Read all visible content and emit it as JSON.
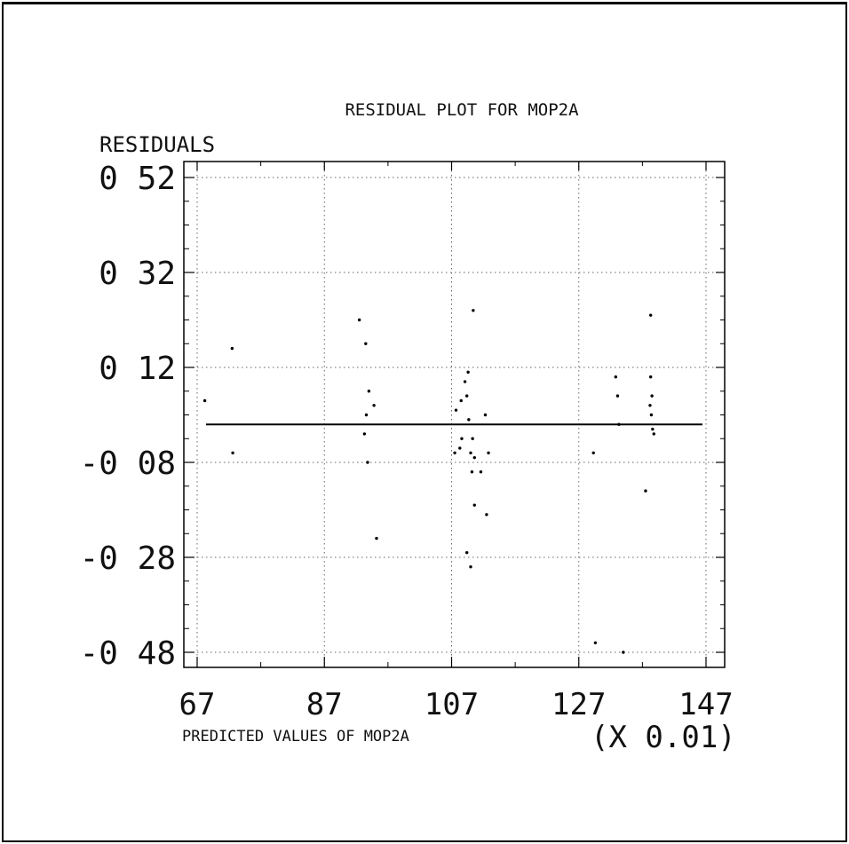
{
  "chart_data": {
    "type": "scatter",
    "title": "RESIDUAL PLOT FOR MOP2A",
    "ylabel": "RESIDUALS",
    "xlabel": "PREDICTED VALUES OF MOP2A",
    "x_scale_note": "(X 0.01)",
    "xlim": [
      67,
      147
    ],
    "ylim": [
      -0.48,
      0.52
    ],
    "x_ticks": [
      67,
      87,
      107,
      127,
      147
    ],
    "y_ticks": [
      0.52,
      0.32,
      0.12,
      -0.08,
      -0.28,
      -0.48
    ],
    "x_tick_labels": [
      "67",
      "87",
      "107",
      "127",
      "147"
    ],
    "y_tick_labels": [
      "0 52",
      "0 32",
      "0 12",
      "-0 08",
      "-0 28",
      "-0 48"
    ],
    "reference_line_y": 0.0,
    "grid": true,
    "points": [
      {
        "x": 68.2,
        "y": 0.05
      },
      {
        "x": 72.5,
        "y": 0.16
      },
      {
        "x": 72.6,
        "y": -0.06
      },
      {
        "x": 92.5,
        "y": 0.22
      },
      {
        "x": 93.5,
        "y": 0.17
      },
      {
        "x": 94.0,
        "y": 0.07
      },
      {
        "x": 94.8,
        "y": 0.04
      },
      {
        "x": 93.6,
        "y": 0.02
      },
      {
        "x": 93.3,
        "y": -0.02
      },
      {
        "x": 93.8,
        "y": -0.08
      },
      {
        "x": 95.2,
        "y": -0.24
      },
      {
        "x": 107.5,
        "y": -0.06
      },
      {
        "x": 107.7,
        "y": 0.03
      },
      {
        "x": 108.5,
        "y": 0.05
      },
      {
        "x": 108.3,
        "y": -0.05
      },
      {
        "x": 108.6,
        "y": -0.03
      },
      {
        "x": 109.1,
        "y": 0.09
      },
      {
        "x": 109.4,
        "y": 0.06
      },
      {
        "x": 109.6,
        "y": 0.11
      },
      {
        "x": 109.7,
        "y": 0.01
      },
      {
        "x": 110.0,
        "y": -0.06
      },
      {
        "x": 110.6,
        "y": -0.07
      },
      {
        "x": 110.3,
        "y": -0.03
      },
      {
        "x": 110.2,
        "y": -0.1
      },
      {
        "x": 110.4,
        "y": 0.24
      },
      {
        "x": 110.6,
        "y": -0.17
      },
      {
        "x": 109.4,
        "y": -0.27
      },
      {
        "x": 110.0,
        "y": -0.3
      },
      {
        "x": 111.6,
        "y": -0.1
      },
      {
        "x": 112.5,
        "y": -0.19
      },
      {
        "x": 112.3,
        "y": 0.02
      },
      {
        "x": 112.8,
        "y": -0.06
      },
      {
        "x": 129.3,
        "y": -0.06
      },
      {
        "x": 129.6,
        "y": -0.46
      },
      {
        "x": 132.8,
        "y": 0.1
      },
      {
        "x": 133.1,
        "y": 0.06
      },
      {
        "x": 133.3,
        "y": 0.0
      },
      {
        "x": 134.0,
        "y": -0.48
      },
      {
        "x": 137.5,
        "y": -0.14
      },
      {
        "x": 138.3,
        "y": 0.23
      },
      {
        "x": 138.5,
        "y": 0.06
      },
      {
        "x": 138.2,
        "y": 0.04
      },
      {
        "x": 138.4,
        "y": 0.02
      },
      {
        "x": 138.6,
        "y": -0.01
      },
      {
        "x": 138.8,
        "y": -0.02
      },
      {
        "x": 138.3,
        "y": 0.1
      }
    ]
  }
}
